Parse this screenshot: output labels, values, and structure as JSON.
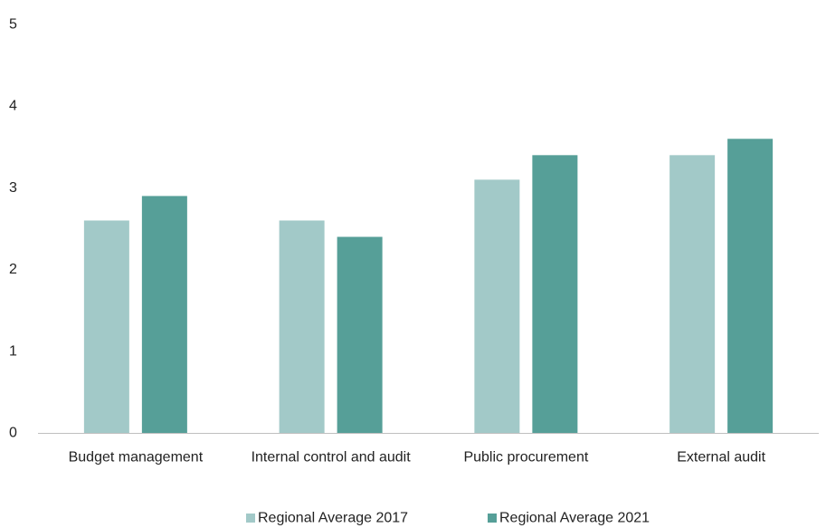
{
  "chart_data": {
    "type": "bar",
    "categories": [
      "Budget management",
      "Internal control and audit",
      "Public procurement",
      "External audit"
    ],
    "series": [
      {
        "name": "Regional Average 2017",
        "values": [
          2.6,
          2.6,
          3.1,
          3.4
        ],
        "color": "#a2c9c8"
      },
      {
        "name": "Regional Average 2021",
        "values": [
          2.9,
          2.4,
          3.4,
          3.6
        ],
        "color": "#569f98"
      }
    ],
    "ylim": [
      0,
      5
    ],
    "yticks": [
      "0",
      "1",
      "2",
      "3",
      "4",
      "5"
    ],
    "title": "",
    "xlabel": "",
    "ylabel": "",
    "grid": false,
    "legend": "bottom-center"
  }
}
